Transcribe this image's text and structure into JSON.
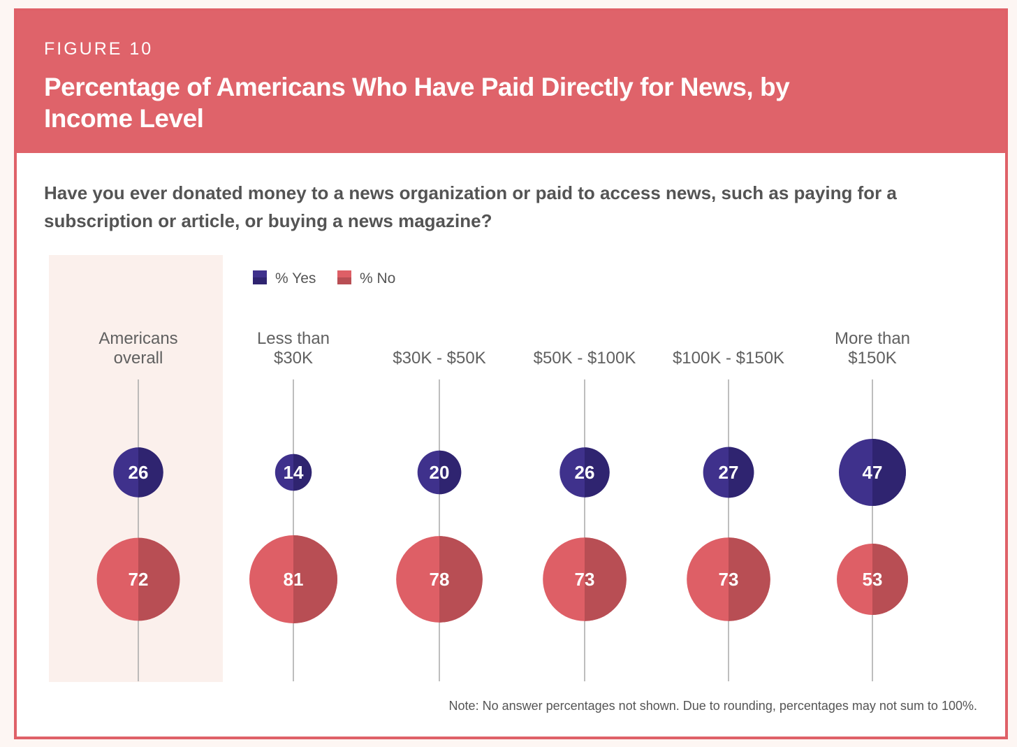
{
  "figure_label": "FIGURE 10",
  "title": "Percentage of Americans Who Have Paid Directly for News, by Income Level",
  "question": "Have you ever donated money to a news organization or paid to access news, such as paying for a subscription or article, or buying a news magazine?",
  "note": "Note: No answer percentages not shown. Due to rounding, percentages may not sum to 100%.",
  "colors": {
    "yes": "#3f318c",
    "yes_shade": "#2f2470",
    "no": "#de5f66",
    "no_shade": "#b84e54",
    "highlight_band": "#fbf0ec",
    "frame": "#df6168"
  },
  "chart_data": {
    "type": "scatter",
    "encoding": "bubble area proportional to percentage",
    "title": "Percentage of Americans Who Have Paid Directly for News, by Income Level",
    "highlighted_category": "Americans overall",
    "categories": [
      "Americans overall",
      "Less than $30K",
      "$30K - $50K",
      "$50K - $100K",
      "$100K - $150K",
      "More than $150K"
    ],
    "category_label_lines": [
      [
        "Americans",
        "overall"
      ],
      [
        "Less than",
        "$30K"
      ],
      [
        "$30K - $50K"
      ],
      [
        "$50K - $100K"
      ],
      [
        "$100K - $150K"
      ],
      [
        "More than",
        "$150K"
      ]
    ],
    "series": [
      {
        "name": "% Yes",
        "values": [
          26,
          14,
          20,
          26,
          27,
          47
        ]
      },
      {
        "name": "% No",
        "values": [
          72,
          81,
          78,
          73,
          73,
          53
        ]
      }
    ],
    "legend": {
      "position": "top-left",
      "entries": [
        "% Yes",
        "% No"
      ]
    }
  }
}
